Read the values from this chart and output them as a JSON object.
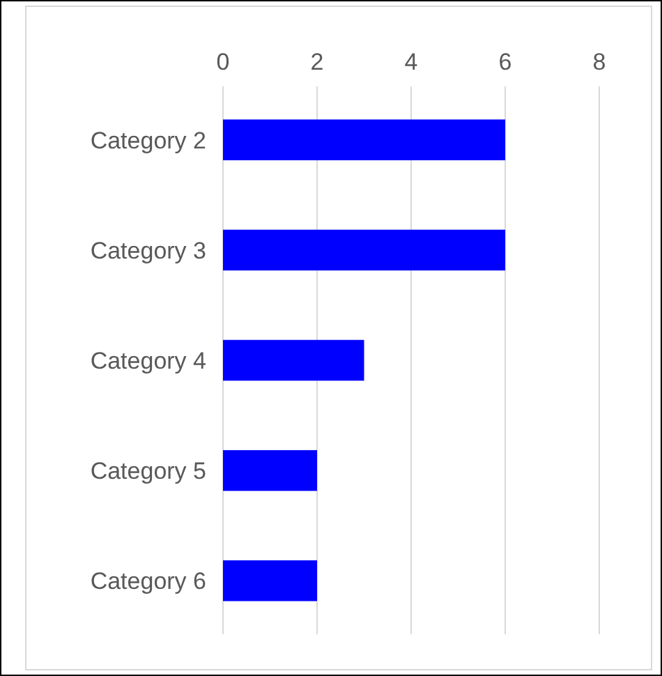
{
  "chart_data": {
    "type": "bar",
    "orientation": "horizontal",
    "categories": [
      "Category 2",
      "Category 3",
      "Category 4",
      "Category 5",
      "Category 6"
    ],
    "values": [
      6,
      6,
      3,
      2,
      2
    ],
    "color": "#0000ff",
    "xlim": [
      0,
      8
    ],
    "xticks": [
      0,
      2,
      4,
      6,
      8
    ],
    "grid": "x"
  }
}
